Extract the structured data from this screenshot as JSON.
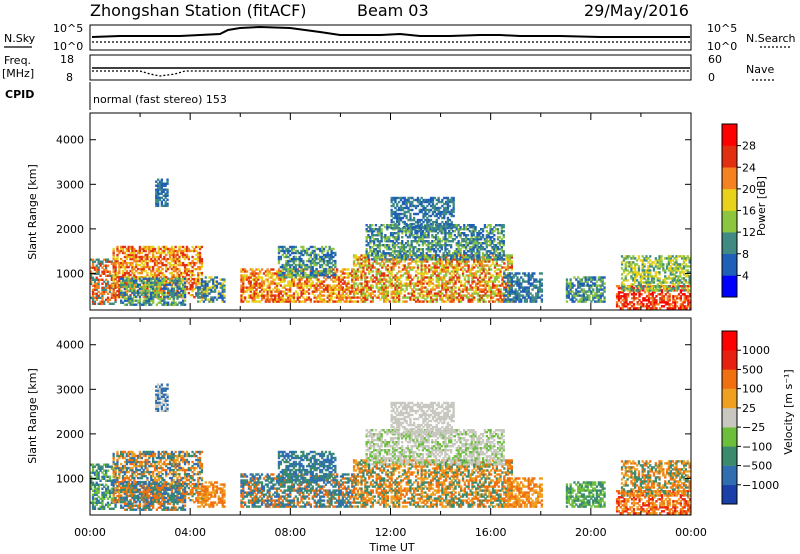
{
  "header": {
    "station_title": "Zhongshan Station (fitACF)",
    "beam": "Beam 03",
    "date": "29/May/2016"
  },
  "summary_panels": {
    "nsky_label": "N.Sky",
    "nsearch_label": "N.Search",
    "count_ticks": [
      "10^5",
      "10^0"
    ],
    "freq_label_1": "Freq.",
    "freq_label_2": "[MHz]",
    "freq_ticks": [
      "18",
      "8"
    ],
    "nave_label": "Nave",
    "nave_ticks": [
      "60",
      "0"
    ],
    "cpid_label": "CPID",
    "cpid_text": "normal (fast stereo) 153"
  },
  "chart_data": [
    {
      "type": "heatmap",
      "name": "power",
      "xlabel": "Time UT",
      "ylabel": "Slant Range [km]",
      "x_ticks": [
        "00:00",
        "04:00",
        "08:00",
        "12:00",
        "16:00",
        "20:00",
        "00:00"
      ],
      "x_range_hours": [
        0,
        24
      ],
      "y_ticks": [
        1000,
        2000,
        3000,
        4000
      ],
      "ylim": [
        180,
        4600
      ],
      "colorbar": {
        "label": "Power [dB]",
        "ticks": [
          "4",
          "8",
          "12",
          "16",
          "20",
          "24",
          "28"
        ],
        "colors": [
          "#0000ff",
          "#1f5fb8",
          "#3f8a82",
          "#8cc63f",
          "#e8d21c",
          "#f58220",
          "#e03010",
          "#ff0000"
        ]
      },
      "regions": [
        {
          "t": [
            0.0,
            1.0
          ],
          "r": [
            300,
            1300
          ],
          "c": [
            2,
            5,
            6
          ]
        },
        {
          "t": [
            0.9,
            4.5
          ],
          "r": [
            450,
            1600
          ],
          "c": [
            4,
            5,
            6
          ]
        },
        {
          "t": [
            1.2,
            3.8
          ],
          "r": [
            280,
            900
          ],
          "c": [
            1,
            2,
            3
          ]
        },
        {
          "t": [
            4.2,
            5.4
          ],
          "r": [
            350,
            900
          ],
          "c": [
            1,
            2,
            4
          ]
        },
        {
          "t": [
            6.0,
            10.5
          ],
          "r": [
            350,
            1100
          ],
          "c": [
            4,
            5,
            6
          ]
        },
        {
          "t": [
            7.5,
            9.8
          ],
          "r": [
            900,
            1600
          ],
          "c": [
            1,
            2,
            3
          ]
        },
        {
          "t": [
            10.5,
            16.8
          ],
          "r": [
            350,
            1400
          ],
          "c": [
            3,
            4,
            5,
            6
          ]
        },
        {
          "t": [
            11.0,
            16.5
          ],
          "r": [
            1300,
            2100
          ],
          "c": [
            1,
            2,
            3
          ]
        },
        {
          "t": [
            12.0,
            14.5
          ],
          "r": [
            2000,
            2700
          ],
          "c": [
            1,
            2
          ]
        },
        {
          "t": [
            16.5,
            18.0
          ],
          "r": [
            350,
            1000
          ],
          "c": [
            1,
            2
          ]
        },
        {
          "t": [
            19.0,
            20.5
          ],
          "r": [
            350,
            900
          ],
          "c": [
            1,
            2,
            3
          ]
        },
        {
          "t": [
            21.0,
            24.0
          ],
          "r": [
            200,
            700
          ],
          "c": [
            5,
            6,
            7
          ]
        },
        {
          "t": [
            21.2,
            24.0
          ],
          "r": [
            600,
            1400
          ],
          "c": [
            2,
            3,
            4
          ]
        },
        {
          "t": [
            2.6,
            3.1
          ],
          "r": [
            2500,
            3100
          ],
          "c": [
            1,
            2
          ]
        }
      ]
    },
    {
      "type": "heatmap",
      "name": "velocity",
      "xlabel": "Time UT",
      "ylabel": "Slant Range [km]",
      "x_ticks": [
        "00:00",
        "04:00",
        "08:00",
        "12:00",
        "16:00",
        "20:00",
        "00:00"
      ],
      "x_range_hours": [
        0,
        24
      ],
      "y_ticks": [
        1000,
        2000,
        3000,
        4000
      ],
      "ylim": [
        180,
        4600
      ],
      "colorbar": {
        "label": "Velocity [m s⁻¹]",
        "ticks": [
          "1000",
          "500",
          "100",
          "25",
          "−25",
          "−100",
          "−500",
          "−1000"
        ],
        "colors": [
          "#1a3fa8",
          "#2f6fb0",
          "#3a8a6e",
          "#6cbf3a",
          "#c8c8c0",
          "#f0a020",
          "#f07010",
          "#e82010",
          "#ff0000"
        ]
      },
      "regions": [
        {
          "t": [
            0.0,
            1.0
          ],
          "r": [
            300,
            1300
          ],
          "c": [
            2,
            3,
            1
          ]
        },
        {
          "t": [
            0.9,
            4.5
          ],
          "r": [
            450,
            1600
          ],
          "c": [
            1,
            2,
            5,
            6
          ]
        },
        {
          "t": [
            1.2,
            3.8
          ],
          "r": [
            280,
            900
          ],
          "c": [
            1,
            2,
            6
          ]
        },
        {
          "t": [
            4.2,
            5.4
          ],
          "r": [
            350,
            900
          ],
          "c": [
            6,
            5
          ]
        },
        {
          "t": [
            6.0,
            10.5
          ],
          "r": [
            350,
            1100
          ],
          "c": [
            2,
            1,
            6
          ]
        },
        {
          "t": [
            7.5,
            9.8
          ],
          "r": [
            900,
            1600
          ],
          "c": [
            1,
            2
          ]
        },
        {
          "t": [
            10.5,
            16.8
          ],
          "r": [
            350,
            1400
          ],
          "c": [
            6,
            5,
            2
          ]
        },
        {
          "t": [
            11.0,
            16.5
          ],
          "r": [
            1300,
            2100
          ],
          "c": [
            4,
            4,
            3
          ]
        },
        {
          "t": [
            12.0,
            14.5
          ],
          "r": [
            2000,
            2700
          ],
          "c": [
            4
          ]
        },
        {
          "t": [
            16.5,
            18.0
          ],
          "r": [
            350,
            1000
          ],
          "c": [
            6,
            5
          ]
        },
        {
          "t": [
            19.0,
            20.5
          ],
          "r": [
            350,
            900
          ],
          "c": [
            3,
            2
          ]
        },
        {
          "t": [
            21.0,
            24.0
          ],
          "r": [
            200,
            700
          ],
          "c": [
            6,
            5,
            7
          ]
        },
        {
          "t": [
            21.2,
            24.0
          ],
          "r": [
            600,
            1400
          ],
          "c": [
            6,
            5,
            2
          ]
        },
        {
          "t": [
            2.6,
            3.1
          ],
          "r": [
            2500,
            3100
          ],
          "c": [
            1,
            4
          ]
        }
      ]
    }
  ]
}
